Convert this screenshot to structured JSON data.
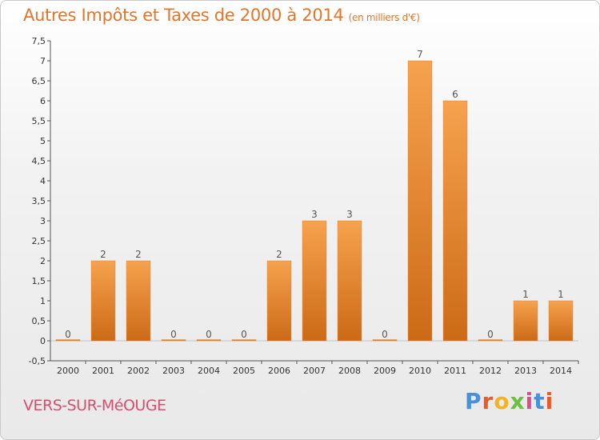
{
  "header": {
    "title": "Autres Impôts et Taxes de 2000 à 2014",
    "subtitle": "(en milliers d'€)"
  },
  "footer": {
    "commune": "VERS-SUR-MéOUGE",
    "brand_letters": [
      "P",
      "r",
      "o",
      "x",
      "i",
      "t",
      "i"
    ],
    "brand_colors": [
      "#4a90d9",
      "#e85a2a",
      "#f2b325",
      "#6cbf3f",
      "#d94e8a",
      "#4a90d9",
      "#e85a2a"
    ]
  },
  "chart_data": {
    "type": "bar",
    "title": "Autres Impôts et Taxes de 2000 à 2014",
    "subtitle": "(en milliers d'€)",
    "categories": [
      "2000",
      "2001",
      "2002",
      "2003",
      "2004",
      "2005",
      "2006",
      "2007",
      "2008",
      "2009",
      "2010",
      "2011",
      "2012",
      "2013",
      "2014"
    ],
    "values": [
      0,
      2,
      2,
      0,
      0,
      0,
      2,
      3,
      3,
      0,
      7,
      6,
      0,
      1,
      1
    ],
    "data_labels": [
      "0",
      "2",
      "2",
      "0",
      "0",
      "0",
      "2",
      "3",
      "3",
      "0",
      "7",
      "6",
      "0",
      "1",
      "1"
    ],
    "ylim": [
      -0.5,
      7.5
    ],
    "yticks": [
      -0.5,
      0,
      0.5,
      1,
      1.5,
      2,
      2.5,
      3,
      3.5,
      4,
      4.5,
      5,
      5.5,
      6,
      6.5,
      7,
      7.5
    ],
    "ytick_labels": [
      "-0,5",
      "0",
      "0,5",
      "1",
      "1,5",
      "2",
      "2,5",
      "3",
      "3,5",
      "4",
      "4,5",
      "5",
      "5,5",
      "6",
      "6,5",
      "7",
      "7,5"
    ],
    "xlabel": "",
    "ylabel": "",
    "grid": false,
    "bar_color": "#e8872e",
    "bar_color_light": "#f6a24e",
    "bar_color_dark": "#cc6a16"
  }
}
